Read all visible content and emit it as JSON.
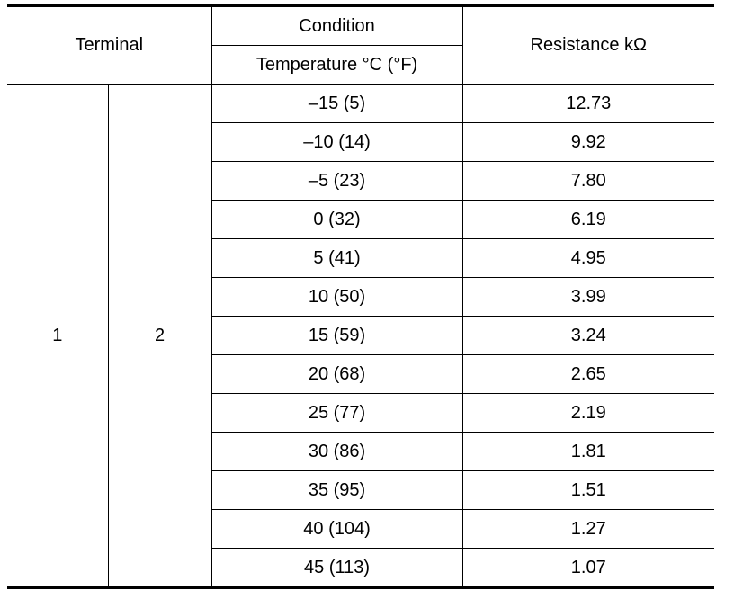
{
  "table": {
    "headers": {
      "terminal": "Terminal",
      "condition": "Condition",
      "temperature": "Temperature °C (°F)",
      "resistance": "Resistance kΩ"
    },
    "terminal_a": "1",
    "terminal_b": "2",
    "rows": [
      {
        "temp": "–15 (5)",
        "resistance": "12.73"
      },
      {
        "temp": "–10 (14)",
        "resistance": "9.92"
      },
      {
        "temp": "–5 (23)",
        "resistance": "7.80"
      },
      {
        "temp": "0 (32)",
        "resistance": "6.19"
      },
      {
        "temp": "5 (41)",
        "resistance": "4.95"
      },
      {
        "temp": "10 (50)",
        "resistance": "3.99"
      },
      {
        "temp": "15 (59)",
        "resistance": "3.24"
      },
      {
        "temp": "20 (68)",
        "resistance": "2.65"
      },
      {
        "temp": "25 (77)",
        "resistance": "2.19"
      },
      {
        "temp": "30 (86)",
        "resistance": "1.81"
      },
      {
        "temp": "35 (95)",
        "resistance": "1.51"
      },
      {
        "temp": "40 (104)",
        "resistance": "1.27"
      },
      {
        "temp": "45 (113)",
        "resistance": "1.07"
      }
    ]
  }
}
